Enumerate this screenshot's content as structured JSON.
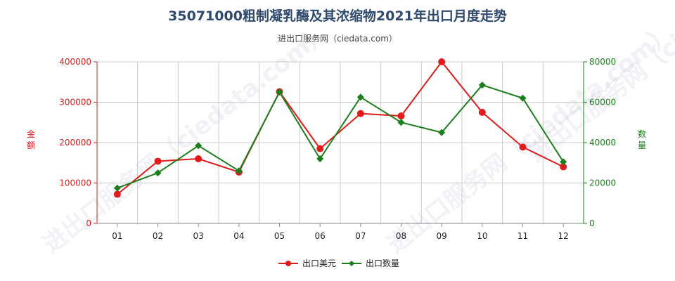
{
  "title": "35071000粗制凝乳酶及其浓缩物2021年出口月度走势",
  "subtitle": "进出口服务网（ciedata.com）",
  "watermark": "进出口服务网（ciedata.com）",
  "colors": {
    "amount": "#e01b1b",
    "quantity": "#1a7f1a",
    "left_axis": "#e01b1b",
    "right_axis": "#1a7f1a",
    "grid": "#cccccc"
  },
  "chart_data": {
    "type": "line",
    "categories": [
      "01",
      "02",
      "03",
      "04",
      "05",
      "06",
      "07",
      "08",
      "09",
      "10",
      "11",
      "12"
    ],
    "series": [
      {
        "name": "出口美元",
        "axis": "left",
        "values": [
          72000,
          154000,
          160000,
          127000,
          326000,
          185000,
          272000,
          266000,
          400000,
          275000,
          189000,
          140000
        ]
      },
      {
        "name": "出口数量",
        "axis": "right",
        "values": [
          17500,
          25000,
          38500,
          26000,
          65000,
          32000,
          62500,
          50000,
          45000,
          68500,
          62000,
          30500
        ]
      }
    ],
    "y_left": {
      "label": "金额",
      "range": [
        0,
        400000
      ],
      "ticks": [
        0,
        100000,
        200000,
        300000,
        400000
      ]
    },
    "y_right": {
      "label": "数量",
      "range": [
        0,
        80000
      ],
      "ticks": [
        0,
        20000,
        40000,
        60000,
        80000
      ]
    },
    "grid": true,
    "legend": "bottom-center"
  }
}
